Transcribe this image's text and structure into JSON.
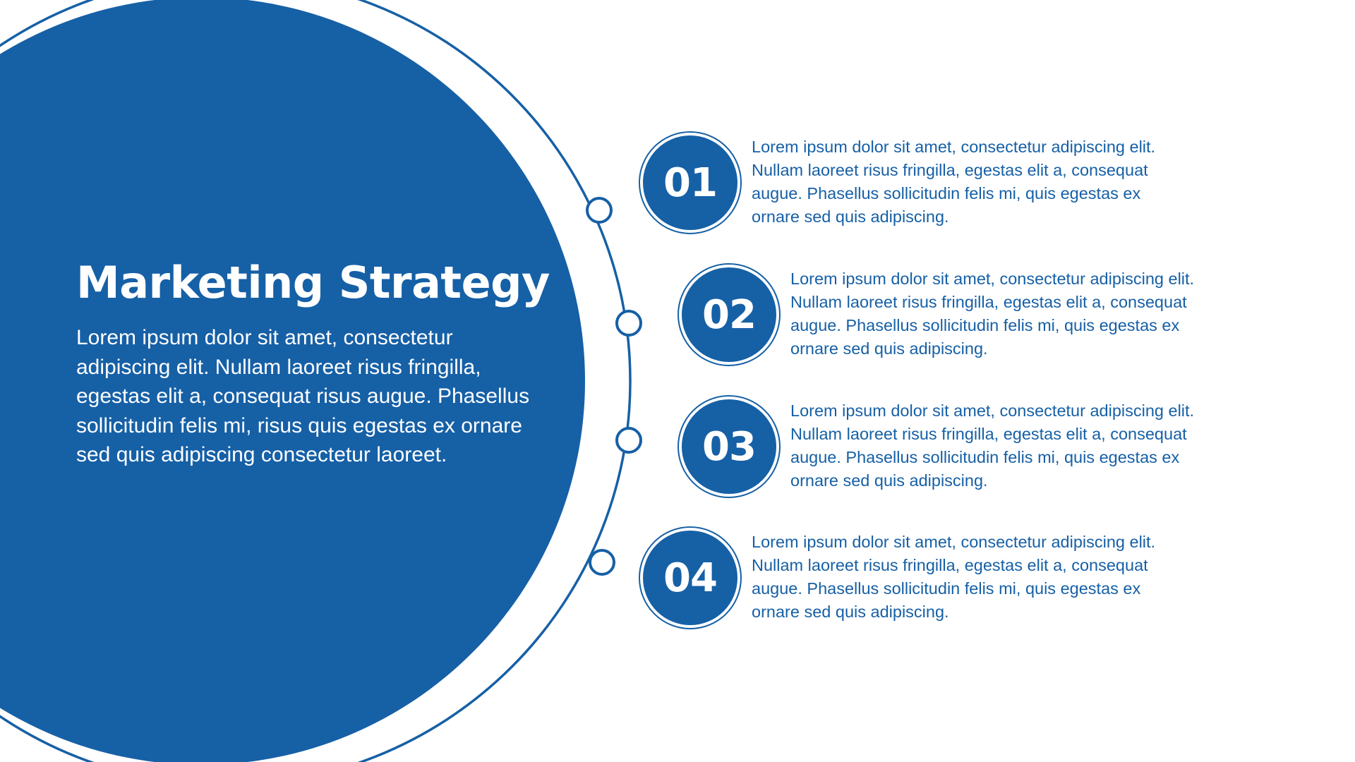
{
  "theme": {
    "primary": "#1660a6",
    "background": "#ffffff"
  },
  "title": "Marketing Strategy",
  "intro": "Lorem ipsum dolor sit amet, consectetur adipiscing elit. Nullam laoreet risus fringilla, egestas elit a, consequat risus augue. Phasellus sollicitudin felis mi, risus quis egestas ex ornare sed quis adipiscing consectetur laoreet.",
  "steps": [
    {
      "number": "01",
      "text": "Lorem ipsum dolor sit amet, consectetur adipiscing elit. Nullam laoreet risus fringilla, egestas elit a, consequat augue. Phasellus sollicitudin felis mi, quis egestas ex ornare sed quis adipiscing."
    },
    {
      "number": "02",
      "text": "Lorem ipsum dolor sit amet, consectetur adipiscing elit. Nullam laoreet risus fringilla, egestas elit a, consequat augue. Phasellus sollicitudin felis mi, quis egestas ex ornare sed quis adipiscing."
    },
    {
      "number": "03",
      "text": "Lorem ipsum dolor sit amet, consectetur adipiscing elit. Nullam laoreet risus fringilla, egestas elit a, consequat augue. Phasellus sollicitudin felis mi, quis egestas ex ornare sed quis adipiscing."
    },
    {
      "number": "04",
      "text": "Lorem ipsum dolor sit amet, consectetur adipiscing elit. Nullam laoreet risus fringilla, egestas elit a, consequat augue. Phasellus sollicitudin felis mi, quis egestas ex ornare sed quis adipiscing."
    }
  ]
}
